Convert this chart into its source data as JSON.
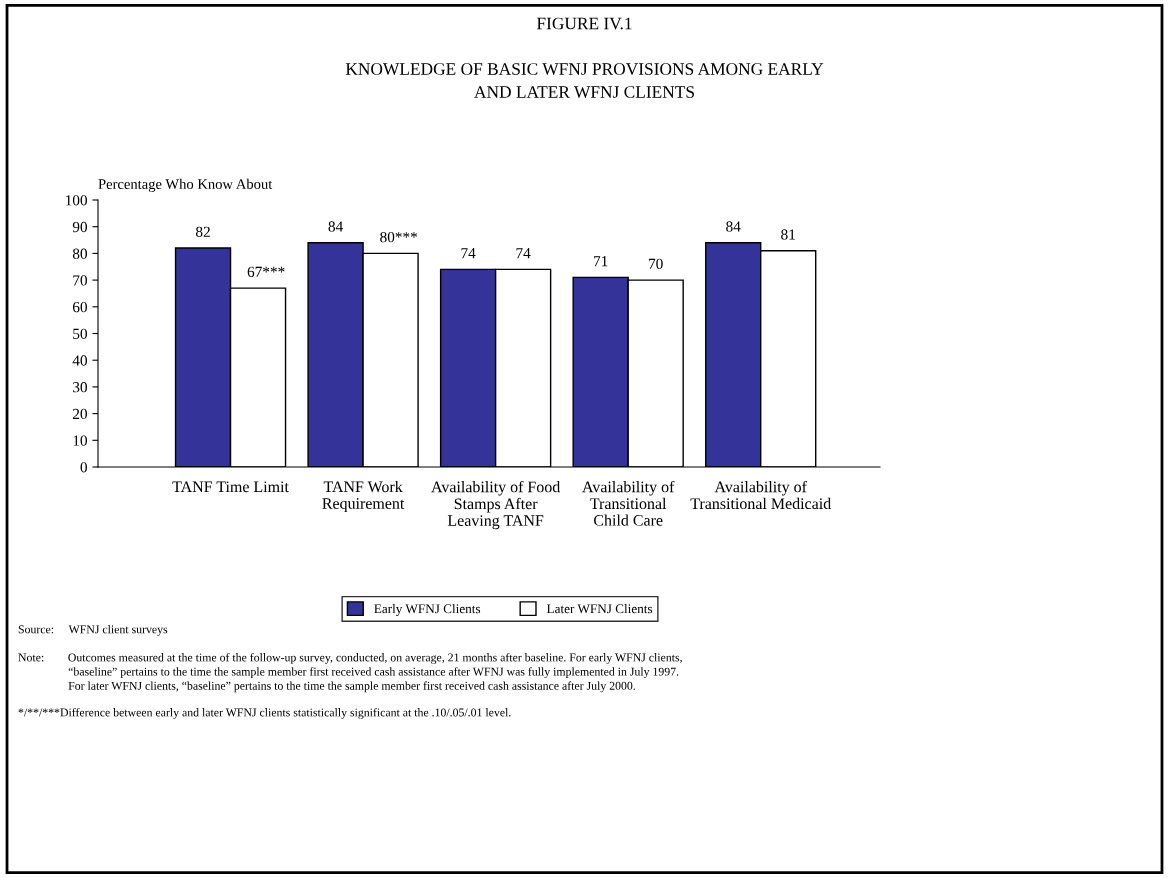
{
  "chart_data": {
    "type": "bar",
    "title": "FIGURE IV.1",
    "subtitle": "KNOWLEDGE OF BASIC WFNJ PROVISIONS AMONG EARLY\nAND LATER WFNJ CLIENTS",
    "ylabel": "Percentage Who Know About",
    "categories": [
      "TANF Time Limit",
      "TANF Work\nRequirement",
      "Availability of Food\nStamps After\nLeaving TANF",
      "Availability of\nTransitional\nChild Care",
      "Availability of\nTransitional Medicaid"
    ],
    "series": [
      {
        "name": "Early WFNJ Clients",
        "color": "#333399",
        "values": [
          82,
          84,
          74,
          71,
          84
        ],
        "value_labels": [
          "82",
          "84",
          "74",
          "71",
          "84"
        ]
      },
      {
        "name": "Later WFNJ Clients",
        "color": "#ffffff",
        "values": [
          67,
          80,
          74,
          70,
          81
        ],
        "value_labels": [
          "67***",
          "80***",
          "74",
          "70",
          "81"
        ]
      }
    ],
    "ylim": [
      0,
      100
    ],
    "yticks": [
      0,
      10,
      20,
      30,
      40,
      50,
      60,
      70,
      80,
      90,
      100
    ],
    "grid": false,
    "legend": "bottom",
    "annotations": [
      "Source:     WFNJ client surveys",
      "Note:        Outcomes measured at the time of the follow-up survey, conducted, on average, 21 months after baseline. For early WFNJ clients,\n                 “baseline” pertains to the time the sample member first received cash assistance after WFNJ was fully implemented in July 1997.\n                 For later WFNJ clients, “baseline” pertains to the time the sample member first received cash assistance after July 2000.",
      "*/**/***Difference between early and later WFNJ clients statistically significant at the .10/.05/.01 level."
    ]
  }
}
